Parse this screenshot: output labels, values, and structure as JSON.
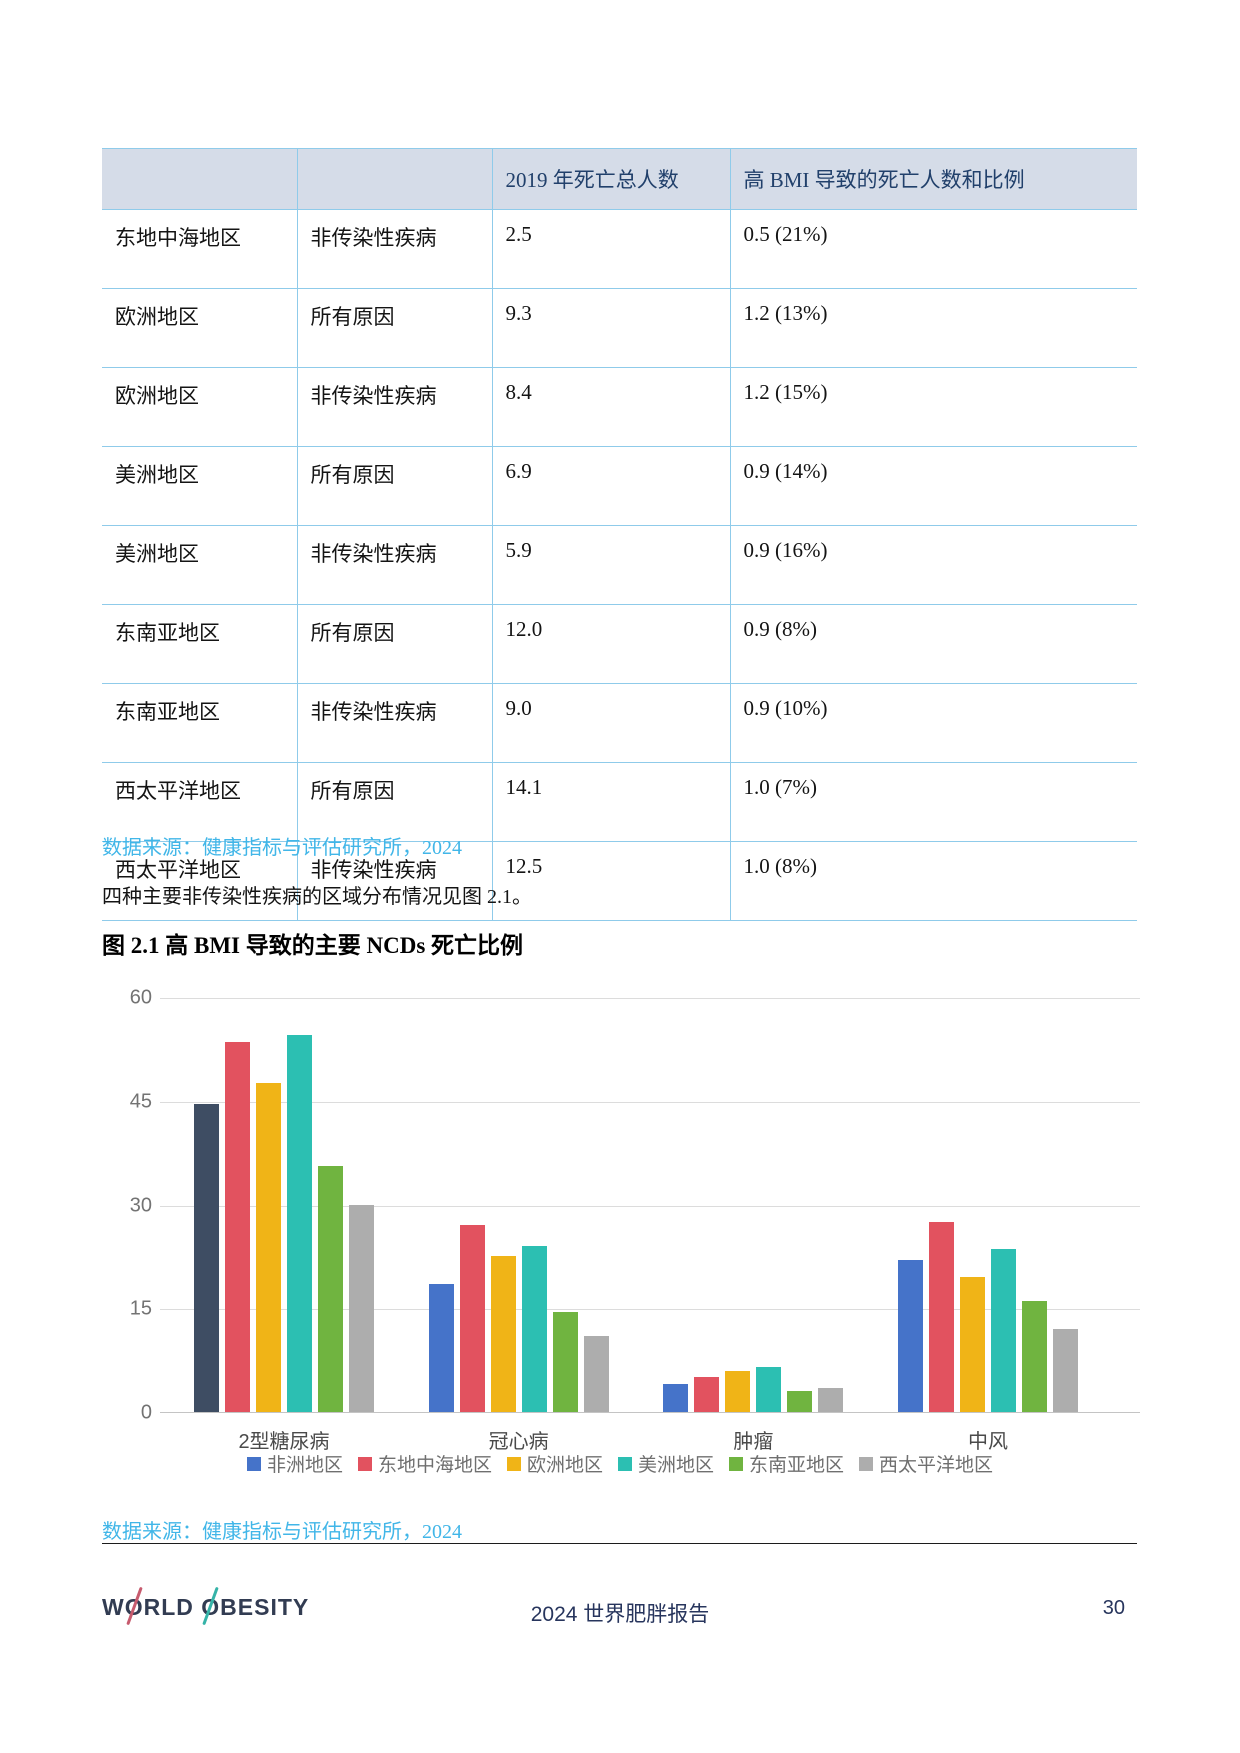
{
  "table": {
    "headers": [
      "",
      "",
      "2019 年死亡总人数",
      "高 BMI 导致的死亡人数和比例"
    ],
    "rows": [
      [
        "东地中海地区",
        "非传染性疾病",
        "2.5",
        "0.5 (21%)"
      ],
      [
        "欧洲地区",
        "所有原因",
        "9.3",
        "1.2 (13%)"
      ],
      [
        "欧洲地区",
        "非传染性疾病",
        "8.4",
        "1.2 (15%)"
      ],
      [
        "美洲地区",
        "所有原因",
        "6.9",
        "0.9 (14%)"
      ],
      [
        "美洲地区",
        "非传染性疾病",
        "5.9",
        "0.9 (16%)"
      ],
      [
        "东南亚地区",
        "所有原因",
        "12.0",
        "0.9 (8%)"
      ],
      [
        "东南亚地区",
        "非传染性疾病",
        "9.0",
        "0.9 (10%)"
      ],
      [
        "西太平洋地区",
        "所有原因",
        "14.1",
        "1.0 (7%)"
      ],
      [
        "西太平洋地区",
        "非传染性疾病",
        "12.5",
        "1.0 (8%)"
      ]
    ]
  },
  "source_note_table": "数据来源：健康指标与评估研究所，2024",
  "paragraph": "四种主要非传染性疾病的区域分布情况见图 2.1。",
  "figure_title": "图 2.1 高 BMI 导致的主要 NCDs 死亡比例",
  "chart_data": {
    "type": "bar",
    "title": "图 2.1 高 BMI 导致的主要 NCDs 死亡比例",
    "categories": [
      "2型糖尿病",
      "冠心病",
      "肿瘤",
      "中风"
    ],
    "series": [
      {
        "name": "非洲地区",
        "color": "#4573c9",
        "values": [
          44.5,
          18.5,
          4,
          22
        ]
      },
      {
        "name": "东地中海地区",
        "color": "#e2525f",
        "values": [
          53.5,
          27,
          5,
          27.5
        ]
      },
      {
        "name": "欧洲地区",
        "color": "#f0b417",
        "values": [
          47.5,
          22.5,
          6,
          19.5
        ]
      },
      {
        "name": "美洲地区",
        "color": "#2cbfb2",
        "values": [
          54.5,
          24,
          6.5,
          23.5
        ]
      },
      {
        "name": "东南亚地区",
        "color": "#70b440",
        "values": [
          35.5,
          14.5,
          3,
          16
        ]
      },
      {
        "name": "西太平洋地区",
        "color": "#adadad",
        "values": [
          30,
          11,
          3.5,
          12
        ]
      }
    ],
    "first_bar_override_color": "#3e4d63",
    "ylim": [
      0,
      60
    ],
    "yticks": [
      0,
      15,
      30,
      45,
      60
    ],
    "grid": true,
    "legend_position": "bottom"
  },
  "source_note_chart": "数据来源：健康指标与评估研究所，2024",
  "footer": {
    "logo": {
      "seg1": "W",
      "o1": "O",
      "seg2": "RLD ",
      "o2": "O",
      "seg3": "BESITY"
    },
    "title": "2024 世界肥胖报告",
    "page_number": "30"
  }
}
